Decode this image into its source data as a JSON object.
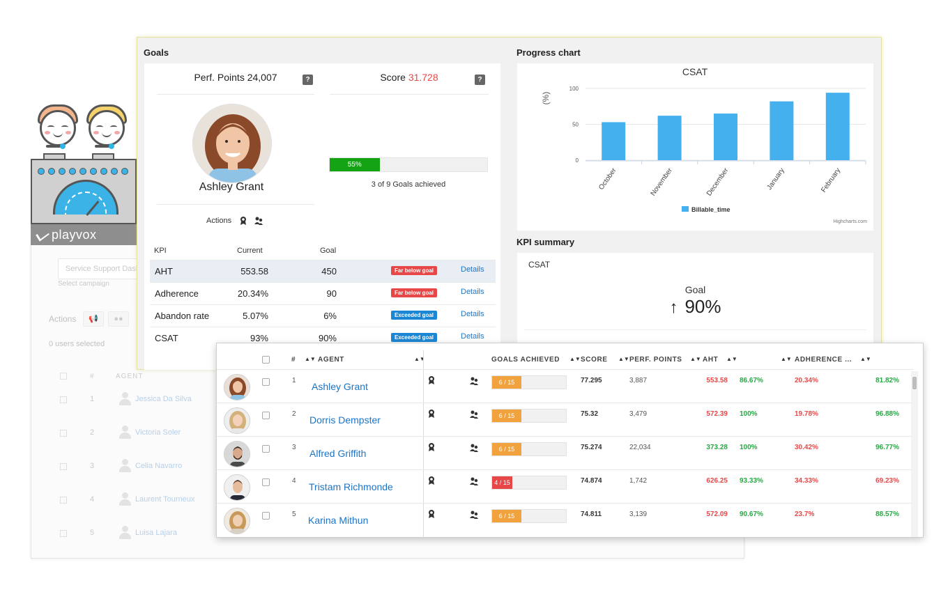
{
  "brand": {
    "name": "playvox"
  },
  "background_panel": {
    "campaign_placeholder": "Service Support Dash",
    "campaign_hint": "Select campaign",
    "actions_label": "Actions",
    "users_selected": "0 users selected",
    "col_num": "#",
    "col_agent": "AGENT",
    "rows": [
      {
        "num": "1",
        "name": "Jessica Da Silva"
      },
      {
        "num": "2",
        "name": "Victoria Soler"
      },
      {
        "num": "3",
        "name": "Celia Navarro"
      },
      {
        "num": "4",
        "name": "Laurent Tourneux"
      },
      {
        "num": "5",
        "name": "Luisa Lajara"
      }
    ]
  },
  "goals": {
    "title": "Goals",
    "perf_points_label": "Perf. Points 24,007",
    "score_label": "Score ",
    "score_value": "31.728",
    "help": "?",
    "agent_name": "Ashley Grant",
    "actions_label": "Actions",
    "progress_percent": 55,
    "progress_label": "55%",
    "goals_achieved_text": "3 of 9 Goals achieved",
    "kpi_headers": {
      "kpi": "KPI",
      "current": "Current",
      "goal": "Goal"
    },
    "kpis": [
      {
        "name": "AHT",
        "current": "553.58",
        "goal": "450",
        "status": "Far below goal",
        "status_color": "#e84747",
        "link": "Details",
        "highlighted": true
      },
      {
        "name": "Adherence",
        "current": "20.34%",
        "goal": "90",
        "status": "Far below goal",
        "status_color": "#e84747",
        "link": "Details",
        "highlighted": false
      },
      {
        "name": "Abandon rate",
        "current": "5.07%",
        "goal": "6%",
        "status": "Exceeded goal",
        "status_color": "#1b86d3",
        "link": "Details",
        "highlighted": false
      },
      {
        "name": "CSAT",
        "current": "93%",
        "goal": "90%",
        "status": "Exceeded goal",
        "status_color": "#1b86d3",
        "link": "Details",
        "highlighted": false
      }
    ]
  },
  "progress_chart": {
    "title": "Progress chart",
    "credit": "Highcharts.com"
  },
  "chart_data": {
    "type": "bar",
    "title": "CSAT",
    "ylabel": "(%)",
    "xlabel": "",
    "categories": [
      "October",
      "November",
      "December",
      "January",
      "February"
    ],
    "series": [
      {
        "name": "Billable_time",
        "values": [
          53,
          62,
          65,
          82,
          94
        ],
        "color": "#44b0ee"
      }
    ],
    "ylim": [
      0,
      100
    ],
    "yticks": [
      0,
      50,
      100
    ],
    "grid": true,
    "legend": "bottom-center"
  },
  "kpi_summary": {
    "title": "KPI summary",
    "kpi_name": "CSAT",
    "goal_label": "Goal",
    "arrow": "↑",
    "goal_value": "90%"
  },
  "agents_table": {
    "headers": {
      "num": "#",
      "agent": "AGENT",
      "goals": "GOALS ACHIEVED",
      "score": "SCORE",
      "perf": "PERF. POINTS",
      "aht": "AHT",
      "adherence": "ADHERENCE ..."
    },
    "rows": [
      {
        "num": "1",
        "name": "Ashley Grant",
        "goals": "6 / 15",
        "goals_fraction": 0.4,
        "goals_color": "#f2a23c",
        "score": "77.295",
        "perf": "3,887",
        "aht": "553.58",
        "aht_color": "red",
        "v2": "86.67%",
        "v2_color": "green",
        "adh": "20.34%",
        "adh_color": "red",
        "v4": "81.82%",
        "v4_color": "green",
        "avatar": "woman-1"
      },
      {
        "num": "2",
        "name": "Dorris Dempster",
        "goals": "6 / 15",
        "goals_fraction": 0.4,
        "goals_color": "#f2a23c",
        "score": "75.32",
        "perf": "3,479",
        "aht": "572.39",
        "aht_color": "red",
        "v2": "100%",
        "v2_color": "green",
        "adh": "19.78%",
        "adh_color": "red",
        "v4": "96.88%",
        "v4_color": "green",
        "avatar": "woman-2"
      },
      {
        "num": "3",
        "name": "Alfred Griffith",
        "goals": "6 / 15",
        "goals_fraction": 0.4,
        "goals_color": "#f2a23c",
        "score": "75.274",
        "perf": "22,034",
        "aht": "373.28",
        "aht_color": "green",
        "v2": "100%",
        "v2_color": "green",
        "adh": "30.42%",
        "adh_color": "red",
        "v4": "96.77%",
        "v4_color": "green",
        "avatar": "man-1"
      },
      {
        "num": "4",
        "name": "Tristam Richmonde",
        "goals": "4 / 15",
        "goals_fraction": 0.27,
        "goals_color": "#e84747",
        "score": "74.874",
        "perf": "1,742",
        "aht": "626.25",
        "aht_color": "red",
        "v2": "93.33%",
        "v2_color": "green",
        "adh": "34.33%",
        "adh_color": "red",
        "v4": "69.23%",
        "v4_color": "red",
        "avatar": "man-2"
      },
      {
        "num": "5",
        "name": "Karina Mithun",
        "goals": "6 / 15",
        "goals_fraction": 0.4,
        "goals_color": "#f2a23c",
        "score": "74.811",
        "perf": "3,139",
        "aht": "572.09",
        "aht_color": "red",
        "v2": "90.67%",
        "v2_color": "green",
        "adh": "23.7%",
        "adh_color": "red",
        "v4": "88.57%",
        "v4_color": "green",
        "avatar": "woman-3"
      }
    ]
  }
}
